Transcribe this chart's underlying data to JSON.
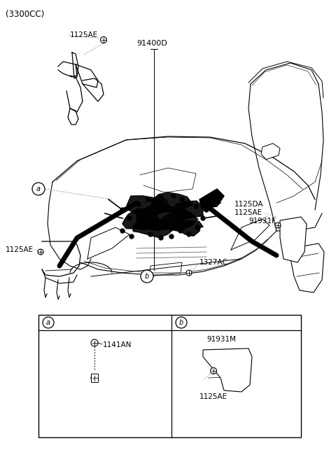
{
  "title": "(3300CC)",
  "bg_color": "#ffffff",
  "line_color": "#000000",
  "gray_color": "#999999",
  "labels": {
    "top_bolt": "1125AE",
    "main_harness": "91400D",
    "circle_a": "a",
    "circle_b": "b",
    "left_bolt": "1125AE",
    "right_label1": "1125DA",
    "right_label2": "1125AE",
    "right_bracket": "91931F",
    "bottom_center": "1327AC"
  },
  "detail_box": {
    "section_a_label": "a",
    "section_b_label": "b",
    "part_a": "1141AN",
    "part_b1": "91931M",
    "part_b2": "1125AE"
  }
}
